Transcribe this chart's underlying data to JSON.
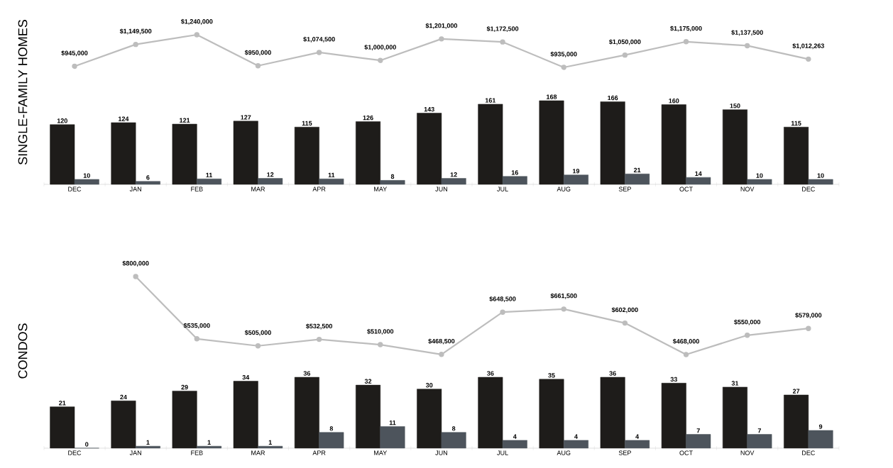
{
  "chart_data": [
    {
      "type": "line",
      "tick_labels": false,
      "marker": "circle",
      "line_style": "solid",
      "categories": [
        null,
        null,
        null,
        null,
        null,
        null,
        null,
        null,
        null,
        null,
        null,
        null,
        null
      ],
      "series": [
        {
          "color": "#bdbdbd",
          "values": [
            945000,
            1149500,
            1240000,
            950000,
            1074500,
            1000000,
            1201000,
            1172500,
            935000,
            1050000,
            1175000,
            1137500,
            1012263
          ],
          "value_labels": [
            "$945,000",
            "$1,149,500",
            "$1,240,000",
            "$950,000",
            "$1,074,500",
            "$1,000,000",
            "$1,201,000",
            "$1,172,500",
            "$935,000",
            "$1,050,000",
            "$1,175,000",
            "$1,137,500",
            "$1,012,263"
          ]
        }
      ]
    },
    {
      "type": "bar",
      "ylabel": "SINGLE-FAMILY HOMES",
      "data_labels": true,
      "tick_labels": "x",
      "categories": [
        "DEC",
        "JAN",
        "FEB",
        "MAR",
        "APR",
        "MAY",
        "JUN",
        "JUL",
        "AUG",
        "SEP",
        "OCT",
        "NOV",
        "DEC"
      ],
      "series": [
        {
          "color": "#1e1c1a",
          "values": [
            120,
            124,
            121,
            127,
            115,
            126,
            143,
            161,
            168,
            166,
            160,
            150,
            115
          ]
        },
        {
          "color": "#4d545c",
          "values": [
            10,
            6,
            11,
            12,
            11,
            8,
            12,
            16,
            19,
            21,
            14,
            10,
            10
          ]
        }
      ]
    },
    {
      "type": "line",
      "tick_labels": false,
      "marker": "circle",
      "line_style": "solid",
      "categories": [
        null,
        null,
        null,
        null,
        null,
        null,
        null,
        null,
        null,
        null,
        null,
        null,
        null
      ],
      "series": [
        {
          "color": "#bdbdbd",
          "values": [
            null,
            800000,
            535000,
            505000,
            532500,
            510000,
            468500,
            648500,
            661500,
            602000,
            468000,
            550000,
            579000
          ],
          "value_labels": [
            null,
            "$800,000",
            "$535,000",
            "$505,000",
            "$532,500",
            "$510,000",
            "$468,500",
            "$648,500",
            "$661,500",
            "$602,000",
            "$468,000",
            "$550,000",
            "$579,000"
          ]
        }
      ]
    },
    {
      "type": "bar",
      "ylabel": "CONDOS",
      "data_labels": true,
      "tick_labels": "x",
      "categories": [
        "DEC",
        "JAN",
        "FEB",
        "MAR",
        "APR",
        "MAY",
        "JUN",
        "JUL",
        "AUG",
        "SEP",
        "OCT",
        "NOV",
        "DEC"
      ],
      "series": [
        {
          "color": "#1e1c1a",
          "values": [
            21,
            24,
            29,
            34,
            36,
            32,
            30,
            36,
            35,
            36,
            33,
            31,
            27
          ]
        },
        {
          "color": "#4d545c",
          "values": [
            0,
            1,
            1,
            1,
            8,
            11,
            8,
            4,
            4,
            4,
            7,
            7,
            9
          ]
        }
      ]
    }
  ]
}
